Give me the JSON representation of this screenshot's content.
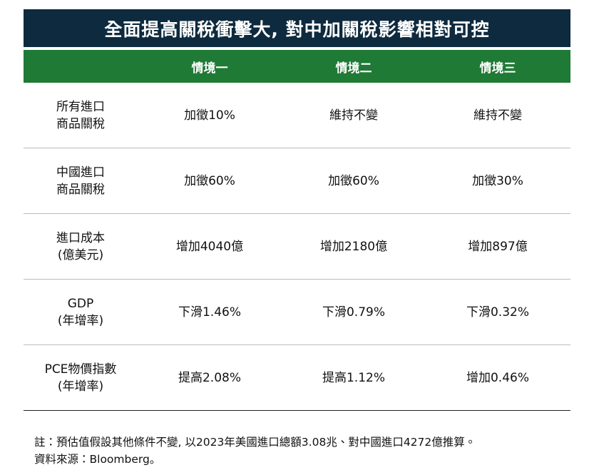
{
  "header": {
    "title": "全面提高關稅衝擊大, 對中加關稅影響相對可控"
  },
  "table": {
    "columns": [
      "情境一",
      "情境二",
      "情境三"
    ],
    "rows": [
      {
        "label": [
          "所有進口",
          "商品關稅"
        ],
        "cells": [
          "加徵10%",
          "維持不變",
          "維持不變"
        ]
      },
      {
        "label": [
          "中國進口",
          "商品關稅"
        ],
        "cells": [
          "加徵60%",
          "加徵60%",
          "加徵30%"
        ]
      },
      {
        "label": [
          "進口成本",
          "(億美元)"
        ],
        "cells": [
          "增加4040億",
          "增加2180億",
          "增加897億"
        ]
      },
      {
        "label": [
          "GDP",
          "(年增率)"
        ],
        "cells": [
          "下滑1.46%",
          "下滑0.79%",
          "下滑0.32%"
        ]
      },
      {
        "label": [
          "PCE物價指數",
          "(年增率)"
        ],
        "cells": [
          "提高2.08%",
          "提高1.12%",
          "增加0.46%"
        ]
      }
    ]
  },
  "notes": [
    "註：預估值假設其他條件不變, 以2023年美國進口總額3.08兆、對中國進口4272億推算。",
    "資料來源：Bloomberg。"
  ]
}
